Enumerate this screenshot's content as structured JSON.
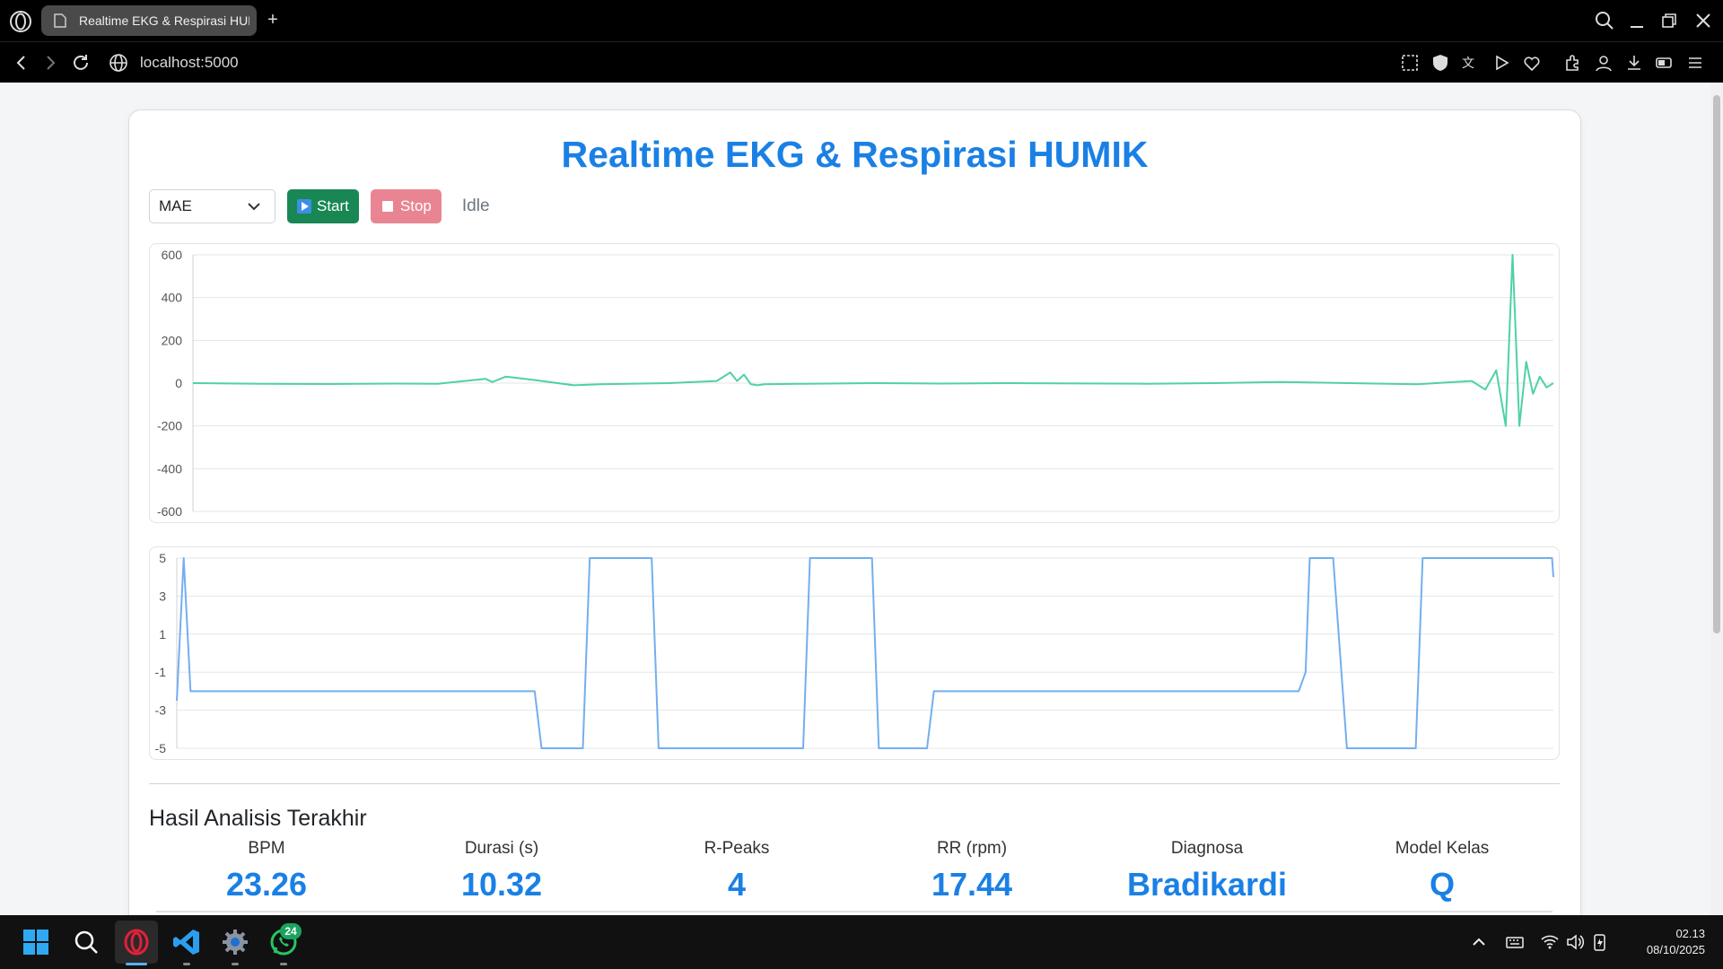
{
  "browser": {
    "tab_title": "Realtime EKG & Respirasi HUMIK",
    "url": "localhost:5000",
    "new_tab_label": "+"
  },
  "page": {
    "title": "Realtime EKG & Respirasi HUMIK",
    "select_value": "MAE",
    "start_label": "Start",
    "stop_label": "Stop",
    "status": "Idle",
    "section_title": "Hasil Analisis Terakhir",
    "stats": [
      {
        "label": "BPM",
        "value": "23.26"
      },
      {
        "label": "Durasi (s)",
        "value": "10.32"
      },
      {
        "label": "R-Peaks",
        "value": "4"
      },
      {
        "label": "RR (rpm)",
        "value": "17.44"
      },
      {
        "label": "Diagnosa",
        "value": "Bradikardi"
      },
      {
        "label": "Model Kelas",
        "value": "Q"
      }
    ]
  },
  "chart_data": [
    {
      "type": "line",
      "color": "#4fd1a5",
      "ylim": [
        -600,
        600
      ],
      "yticks": [
        "600",
        "400",
        "200",
        "0",
        "-200",
        "-400",
        "-600"
      ],
      "x": [
        0,
        5,
        10,
        15,
        18,
        20,
        21.5,
        22,
        23,
        25,
        28,
        30,
        35,
        38.5,
        39.5,
        40,
        40.5,
        41,
        41.5,
        42,
        45,
        50,
        55,
        60,
        70,
        75,
        80,
        85,
        90,
        94,
        95,
        95.8,
        96.5,
        97,
        97.5,
        98,
        98.5,
        99,
        99.5,
        100
      ],
      "values": [
        0,
        -3,
        -4,
        -2,
        -3,
        10,
        20,
        5,
        30,
        15,
        -10,
        -5,
        0,
        10,
        50,
        10,
        40,
        -5,
        -10,
        -5,
        -3,
        0,
        -2,
        0,
        -3,
        0,
        5,
        0,
        -5,
        10,
        -30,
        60,
        -200,
        600,
        -200,
        100,
        -50,
        30,
        -20,
        0
      ]
    },
    {
      "type": "line",
      "color": "#74aef0",
      "ylim": [
        -5,
        5
      ],
      "yticks": [
        "5",
        "3",
        "1",
        "-1",
        "-3",
        "-5"
      ],
      "x": [
        0,
        0.5,
        1,
        26,
        26.5,
        29.5,
        30,
        34.5,
        35,
        45.5,
        46,
        50.5,
        51,
        54.5,
        55,
        81.5,
        82,
        82.3,
        84,
        85,
        90,
        90.5,
        99.9,
        100
      ],
      "values": [
        -2.5,
        5,
        -2,
        -2,
        -5,
        -5,
        5,
        5,
        -5,
        -5,
        5,
        5,
        -5,
        -5,
        -2,
        -2,
        -1,
        5,
        5,
        -5,
        -5,
        5,
        5,
        4
      ]
    }
  ],
  "taskbar": {
    "whatsapp_badge": "24",
    "time": "02.13",
    "date": "08/10/2025"
  }
}
